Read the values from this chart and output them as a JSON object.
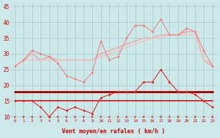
{
  "x": [
    0,
    1,
    2,
    3,
    4,
    5,
    6,
    7,
    8,
    9,
    10,
    11,
    12,
    13,
    14,
    15,
    16,
    17,
    18,
    19,
    20,
    21,
    22,
    23
  ],
  "line1": [
    26,
    28,
    31,
    30,
    29,
    27,
    23,
    22,
    21,
    24,
    34,
    28,
    29,
    35,
    39,
    39,
    37,
    41,
    36,
    36,
    38,
    37,
    31,
    26
  ],
  "line2": [
    26,
    28,
    30,
    28,
    29,
    28,
    28,
    28,
    28,
    28,
    30,
    31,
    32,
    33,
    34,
    35,
    35,
    36,
    36,
    36,
    37,
    37,
    28,
    26
  ],
  "line3": [
    26,
    28,
    28,
    28,
    28,
    28,
    28,
    28,
    28,
    28,
    29,
    30,
    31,
    32,
    33,
    34,
    35,
    35,
    36,
    36,
    36,
    36,
    28,
    27
  ],
  "line4": [
    15,
    15,
    15,
    13,
    10,
    13,
    12,
    13,
    12,
    11,
    16,
    17,
    18,
    18,
    18,
    21,
    21,
    25,
    21,
    18,
    18,
    17,
    15,
    13
  ],
  "line5": [
    18,
    18,
    18,
    18,
    18,
    18,
    18,
    18,
    18,
    18,
    18,
    18,
    18,
    18,
    18,
    18,
    18,
    18,
    18,
    18,
    18,
    18,
    18,
    18
  ],
  "line6": [
    15,
    15,
    15,
    15,
    15,
    15,
    15,
    15,
    15,
    15,
    15,
    15,
    15,
    15,
    15,
    15,
    15,
    15,
    15,
    15,
    15,
    15,
    15,
    15
  ],
  "xlabel": "Vent moyen/en rafales ( km/h )",
  "ylim": [
    9.5,
    46
  ],
  "yticks": [
    10,
    15,
    20,
    25,
    30,
    35,
    40,
    45
  ],
  "bg_color": "#cce8e8",
  "grid_color": "#aacccc",
  "line1_color": "#f08080",
  "line2_color": "#f4a0a0",
  "line3_color": "#f8bcbc",
  "line4_color": "#dd2222",
  "line5_color": "#aa0000",
  "line6_color": "#cc1111",
  "arrow_color": "#dd3333",
  "tick_color": "#cc0000",
  "label_color": "#cc0000"
}
